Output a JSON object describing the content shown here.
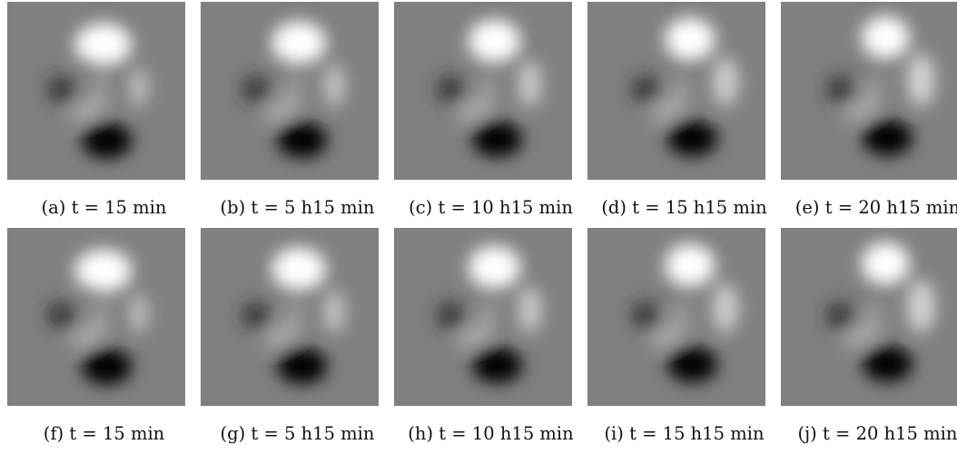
{
  "figure": {
    "rows": [
      {
        "panels": [
          {
            "label": "(a)",
            "caption": "t = 15 min",
            "frame": 0
          },
          {
            "label": "(b)",
            "caption": "t = 5 h15 min",
            "frame": 1
          },
          {
            "label": "(c)",
            "caption": "t = 10 h15 min",
            "frame": 2
          },
          {
            "label": "(d)",
            "caption": "t = 15 h15 min",
            "frame": 3
          },
          {
            "label": "(e)",
            "caption": "t = 20 h15 min",
            "frame": 4
          }
        ]
      },
      {
        "panels": [
          {
            "label": "(f)",
            "caption": "t = 15 min",
            "frame": 0
          },
          {
            "label": "(g)",
            "caption": "t = 5 h15 min",
            "frame": 1
          },
          {
            "label": "(h)",
            "caption": "t = 10 h15 min",
            "frame": 2
          },
          {
            "label": "(i)",
            "caption": "t = 15 h15 min",
            "frame": 3
          },
          {
            "label": "(j)",
            "caption": "t = 20 h15 min",
            "frame": 4
          }
        ]
      }
    ]
  },
  "colors": {
    "background_gray": "#808080",
    "bright_blob": "#ffffff",
    "dark_blob": "#000000"
  }
}
